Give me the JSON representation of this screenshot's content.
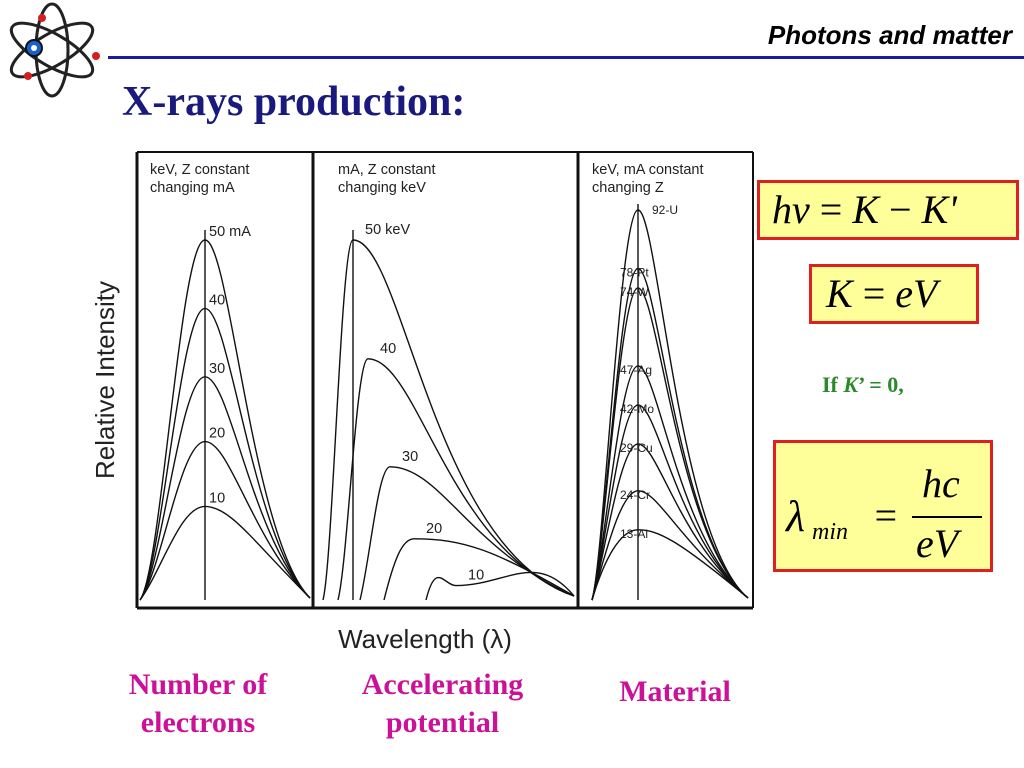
{
  "header": {
    "title": "Photons and matter",
    "rule_color": "#1a1aa8"
  },
  "slide": {
    "title": "X-rays production:",
    "title_color": "#1a1a7e"
  },
  "logo": {
    "icon": "atom-icon"
  },
  "chart_data": {
    "type": "line",
    "ylabel": "Relative Intensity",
    "xlabel": "Wavelength (λ)",
    "panels": [
      {
        "caption_line1": "keV, Z constant",
        "caption_line2": "changing mA",
        "series_labels": [
          "50 mA",
          "40",
          "30",
          "20",
          "10"
        ],
        "relative_peaks": [
          1.0,
          0.81,
          0.62,
          0.44,
          0.26
        ]
      },
      {
        "caption_line1": "mA, Z constant",
        "caption_line2": "changing keV",
        "series_labels": [
          "50 keV",
          "40",
          "30",
          "20",
          "10"
        ],
        "relative_peaks": [
          1.0,
          0.67,
          0.37,
          0.17,
          0.04
        ]
      },
      {
        "caption_line1": "keV, mA constant",
        "caption_line2": "changing Z",
        "series_labels": [
          "92-U",
          "78-Pt",
          "74-W",
          "47-Ag",
          "42-Mo",
          "29-Cu",
          "24-Cr",
          "13-Al"
        ],
        "relative_peaks": [
          1.0,
          0.85,
          0.8,
          0.6,
          0.5,
          0.4,
          0.28,
          0.18
        ]
      }
    ]
  },
  "equations": {
    "eq1": {
      "h": "h",
      "nu": "ν",
      "eq": " = ",
      "k": "K",
      "minus": " − ",
      "kprime": "K'"
    },
    "eq2": {
      "k": "K",
      "eq": " = ",
      "ev": "eV"
    },
    "condition": {
      "if": "If ",
      "k": "K",
      "rest": "’ = 0,"
    },
    "eq3": {
      "lambda": "λ",
      "sub": "min",
      "eq": "=",
      "num": "hc",
      "den": "eV"
    },
    "box_fill": "#ffff99",
    "box_border": "#e02020"
  },
  "captions": {
    "left": [
      "Number of",
      "electrons"
    ],
    "middle": [
      "Accelerating",
      "potential"
    ],
    "right": [
      "Material"
    ],
    "color": "#cc1199"
  }
}
